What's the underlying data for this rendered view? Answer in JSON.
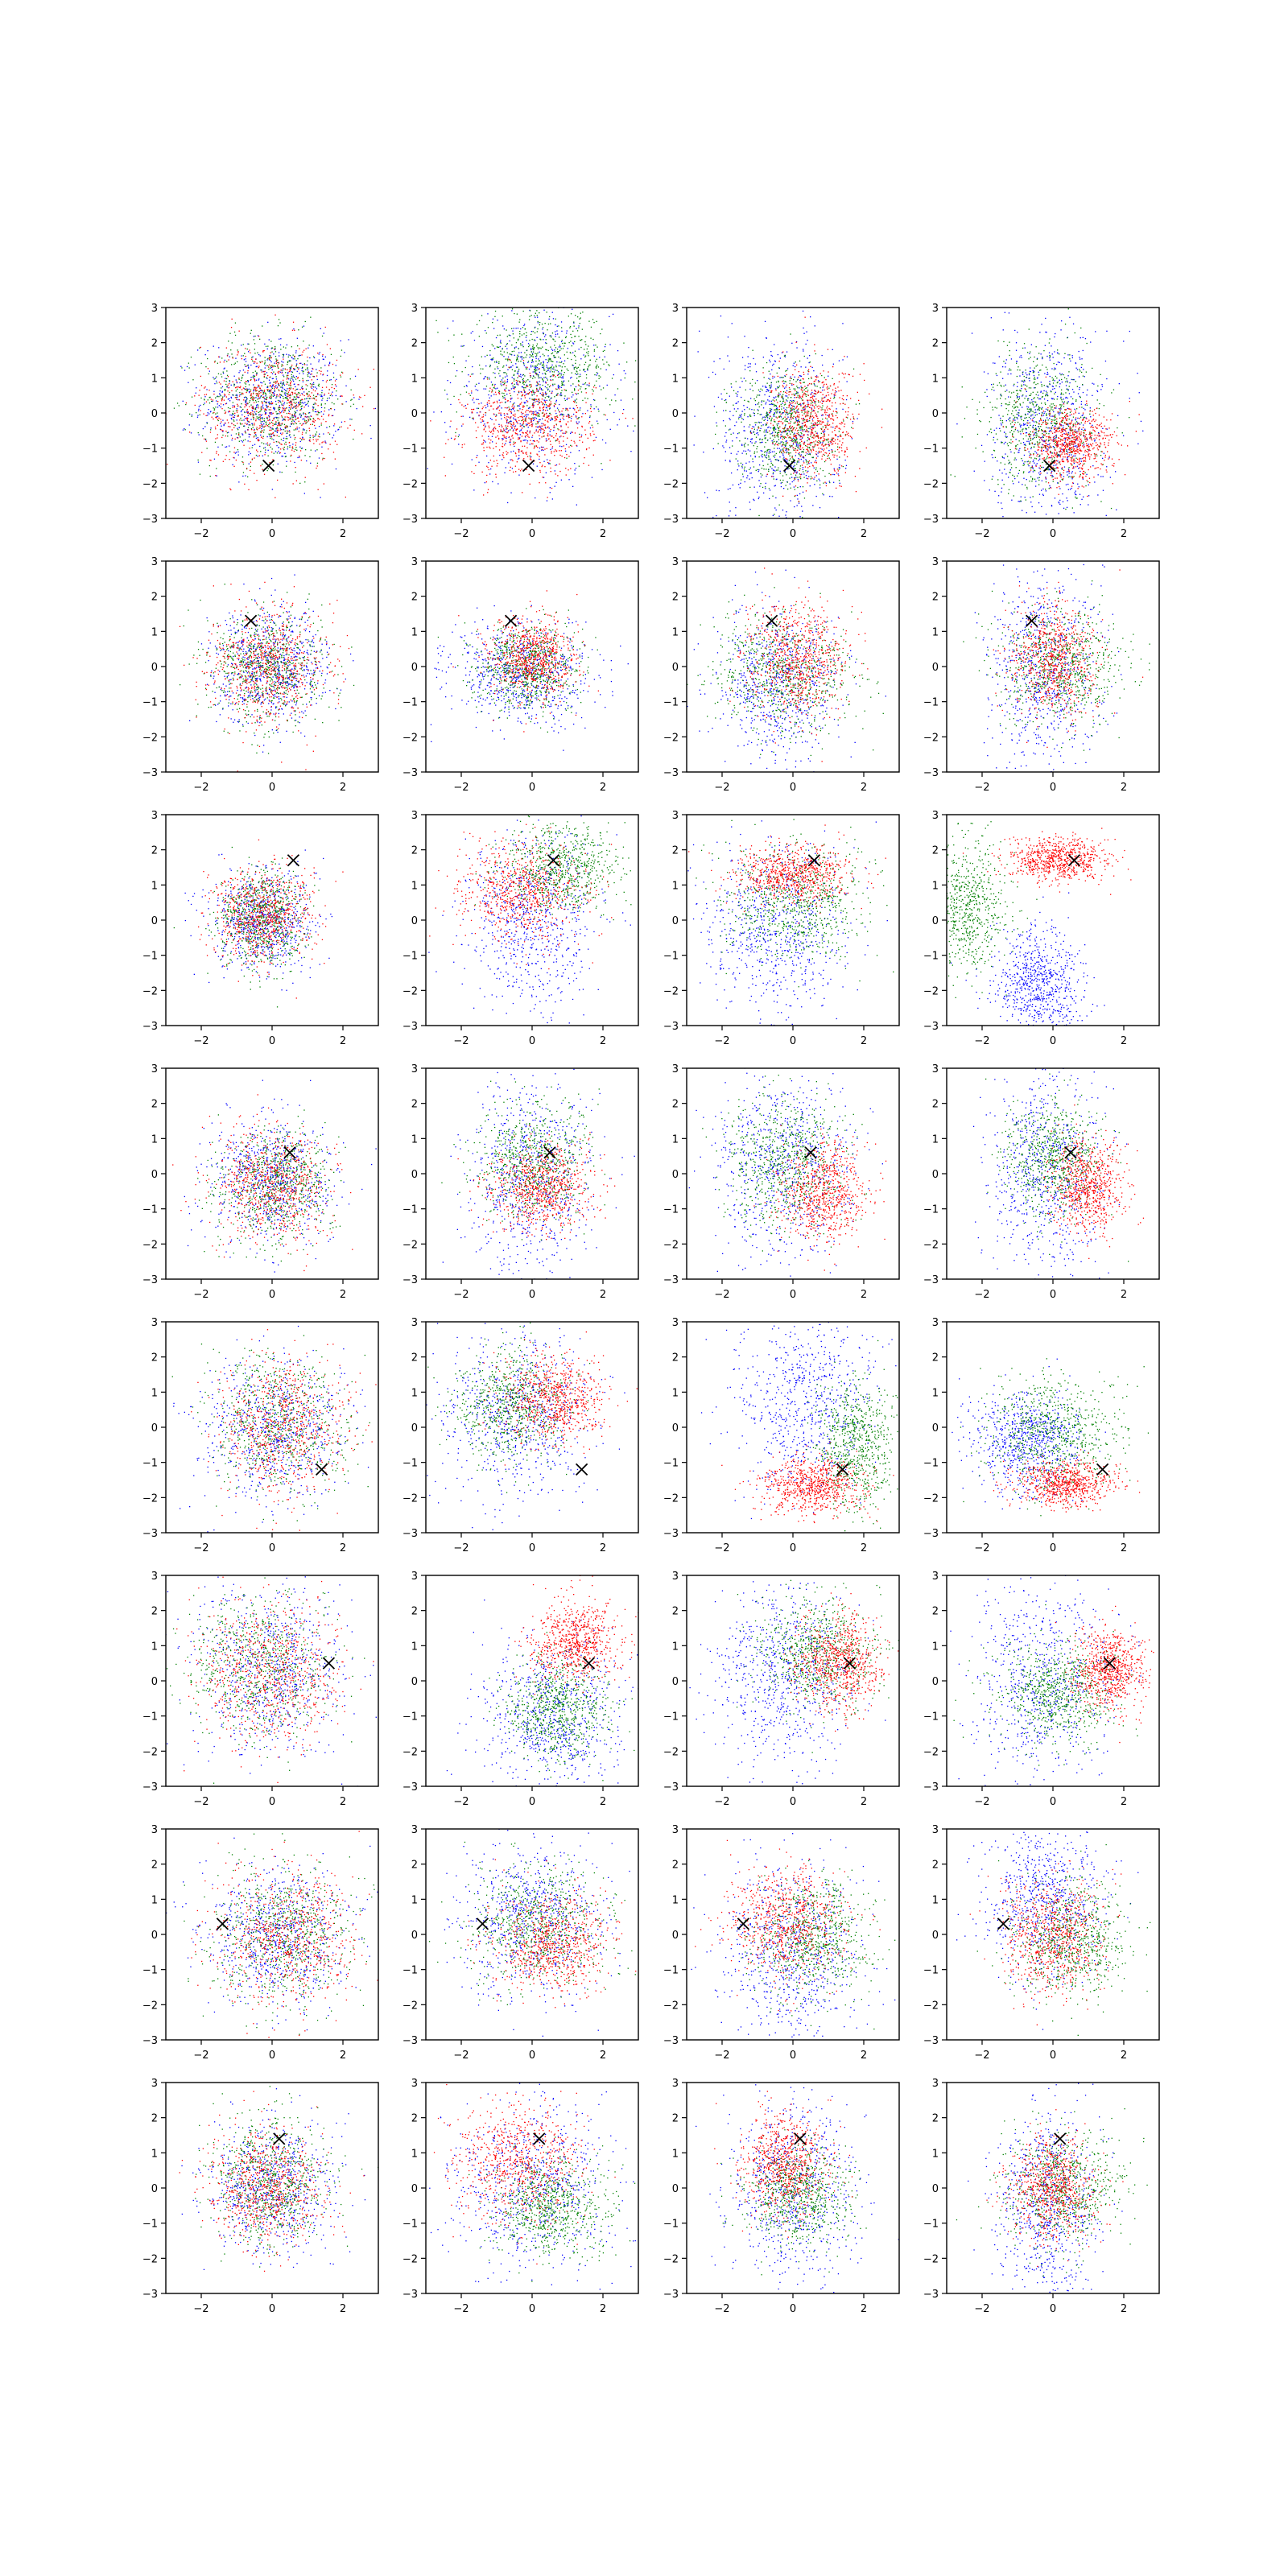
{
  "chart_data": {
    "type": "scatter",
    "layout": {
      "rows": 8,
      "cols": 4
    },
    "xlim": [
      -3,
      3
    ],
    "ylim": [
      -3,
      3
    ],
    "x_ticks": [
      -2,
      0,
      2
    ],
    "y_ticks": [
      -3,
      -2,
      -1,
      0,
      1,
      2,
      3
    ],
    "x_tick_labels": [
      "−2",
      "0",
      "2"
    ],
    "y_tick_labels": [
      "−3",
      "−2",
      "−1",
      "0",
      "1",
      "2",
      "3"
    ],
    "grid": false,
    "legend": "none",
    "series_colors": [
      "#0000ff",
      "#008000",
      "#ff0000"
    ],
    "marker_color": "#000000",
    "rows": [
      {
        "marker": [
          -0.1,
          -1.5
        ],
        "panels": [
          [
            {
              "cx": 0.0,
              "cy": 0.3,
              "sx": 1.0,
              "sy": 0.9
            },
            {
              "cx": 0.0,
              "cy": 0.4,
              "sx": 1.0,
              "sy": 0.9
            },
            {
              "cx": 0.0,
              "cy": 0.2,
              "sx": 1.0,
              "sy": 0.9
            }
          ],
          [
            {
              "cx": 0.0,
              "cy": 0.5,
              "sx": 1.1,
              "sy": 1.2
            },
            {
              "cx": 0.3,
              "cy": 1.3,
              "sx": 1.0,
              "sy": 0.8
            },
            {
              "cx": -0.1,
              "cy": -0.4,
              "sx": 0.9,
              "sy": 0.7
            }
          ],
          [
            {
              "cx": -0.4,
              "cy": -0.5,
              "sx": 0.9,
              "sy": 1.4
            },
            {
              "cx": -0.2,
              "cy": -0.4,
              "sx": 0.7,
              "sy": 0.9
            },
            {
              "cx": 0.6,
              "cy": -0.3,
              "sx": 0.6,
              "sy": 0.8
            }
          ],
          [
            {
              "cx": -0.1,
              "cy": -0.4,
              "sx": 0.8,
              "sy": 1.4
            },
            {
              "cx": -0.3,
              "cy": -0.2,
              "sx": 0.8,
              "sy": 1.0
            },
            {
              "cx": 0.5,
              "cy": -0.9,
              "sx": 0.6,
              "sy": 0.5
            }
          ]
        ]
      },
      {
        "marker": [
          -0.6,
          1.3
        ],
        "panels": [
          [
            {
              "cx": 0.0,
              "cy": 0.0,
              "sx": 0.8,
              "sy": 0.8
            },
            {
              "cx": -0.1,
              "cy": 0.0,
              "sx": 0.8,
              "sy": 0.8
            },
            {
              "cx": -0.1,
              "cy": 0.0,
              "sx": 0.8,
              "sy": 0.8
            }
          ],
          [
            {
              "cx": -0.3,
              "cy": -0.2,
              "sx": 1.0,
              "sy": 0.7
            },
            {
              "cx": -0.1,
              "cy": 0.0,
              "sx": 0.7,
              "sy": 0.6
            },
            {
              "cx": 0.0,
              "cy": 0.2,
              "sx": 0.6,
              "sy": 0.6
            }
          ],
          [
            {
              "cx": -0.4,
              "cy": -0.5,
              "sx": 0.9,
              "sy": 1.1
            },
            {
              "cx": -0.2,
              "cy": -0.2,
              "sx": 1.0,
              "sy": 0.8
            },
            {
              "cx": 0.1,
              "cy": 0.2,
              "sx": 0.7,
              "sy": 0.8
            }
          ],
          [
            {
              "cx": -0.2,
              "cy": 0.0,
              "sx": 0.8,
              "sy": 1.4
            },
            {
              "cx": 0.2,
              "cy": 0.0,
              "sx": 0.9,
              "sy": 0.8
            },
            {
              "cx": 0.0,
              "cy": 0.2,
              "sx": 0.6,
              "sy": 0.8
            }
          ]
        ]
      },
      {
        "marker": [
          0.6,
          1.7
        ],
        "panels": [
          [
            {
              "cx": -0.3,
              "cy": 0.0,
              "sx": 0.7,
              "sy": 0.7
            },
            {
              "cx": -0.3,
              "cy": 0.0,
              "sx": 0.6,
              "sy": 0.7
            },
            {
              "cx": -0.3,
              "cy": 0.1,
              "sx": 0.7,
              "sy": 0.7
            }
          ],
          [
            {
              "cx": 0.0,
              "cy": 0.0,
              "sx": 0.9,
              "sy": 1.3
            },
            {
              "cx": 0.8,
              "cy": 1.5,
              "sx": 0.8,
              "sy": 0.6
            },
            {
              "cx": -0.3,
              "cy": 0.8,
              "sx": 0.9,
              "sy": 0.7
            }
          ],
          [
            {
              "cx": -0.5,
              "cy": -0.2,
              "sx": 1.0,
              "sy": 1.2
            },
            {
              "cx": 0.1,
              "cy": 0.5,
              "sx": 1.0,
              "sy": 0.8
            },
            {
              "cx": 0.0,
              "cy": 1.3,
              "sx": 0.8,
              "sy": 0.4
            }
          ],
          [
            {
              "cx": -0.4,
              "cy": -1.8,
              "sx": 0.6,
              "sy": 0.8
            },
            {
              "cx": -2.5,
              "cy": 0.3,
              "sx": 0.6,
              "sy": 0.9
            },
            {
              "cx": 0.2,
              "cy": 1.7,
              "sx": 0.7,
              "sy": 0.3
            }
          ]
        ]
      },
      {
        "marker": [
          0.5,
          0.6
        ],
        "panels": [
          [
            {
              "cx": 0.0,
              "cy": -0.2,
              "sx": 0.9,
              "sy": 0.9
            },
            {
              "cx": 0.1,
              "cy": -0.3,
              "sx": 0.8,
              "sy": 0.8
            },
            {
              "cx": 0.0,
              "cy": -0.3,
              "sx": 0.8,
              "sy": 0.8
            }
          ],
          [
            {
              "cx": 0.0,
              "cy": 0.0,
              "sx": 0.9,
              "sy": 1.4
            },
            {
              "cx": 0.0,
              "cy": 0.3,
              "sx": 0.8,
              "sy": 0.8
            },
            {
              "cx": 0.3,
              "cy": -0.4,
              "sx": 0.7,
              "sy": 0.6
            }
          ],
          [
            {
              "cx": -0.3,
              "cy": 0.3,
              "sx": 1.0,
              "sy": 1.3
            },
            {
              "cx": -0.2,
              "cy": 0.4,
              "sx": 0.8,
              "sy": 0.9
            },
            {
              "cx": 0.9,
              "cy": -0.5,
              "sx": 0.6,
              "sy": 0.7
            }
          ],
          [
            {
              "cx": -0.2,
              "cy": 0.0,
              "sx": 0.8,
              "sy": 1.4
            },
            {
              "cx": 0.0,
              "cy": 0.4,
              "sx": 0.7,
              "sy": 0.8
            },
            {
              "cx": 1.0,
              "cy": -0.4,
              "sx": 0.5,
              "sy": 0.6
            }
          ]
        ]
      },
      {
        "marker": [
          1.4,
          -1.2
        ],
        "panels": [
          [
            {
              "cx": 0.0,
              "cy": -0.1,
              "sx": 1.0,
              "sy": 1.0
            },
            {
              "cx": 0.2,
              "cy": 0.1,
              "sx": 1.0,
              "sy": 1.0
            },
            {
              "cx": 0.3,
              "cy": 0.0,
              "sx": 0.9,
              "sy": 1.0
            }
          ],
          [
            {
              "cx": -0.4,
              "cy": 0.3,
              "sx": 1.1,
              "sy": 1.2
            },
            {
              "cx": -0.6,
              "cy": 0.6,
              "sx": 0.8,
              "sy": 0.8
            },
            {
              "cx": 0.6,
              "cy": 0.8,
              "sx": 0.7,
              "sy": 0.6
            }
          ],
          [
            {
              "cx": 0.3,
              "cy": 0.7,
              "sx": 1.0,
              "sy": 1.4
            },
            {
              "cx": 1.8,
              "cy": -0.5,
              "sx": 0.5,
              "sy": 0.9
            },
            {
              "cx": 0.6,
              "cy": -1.7,
              "sx": 0.7,
              "sy": 0.4
            }
          ],
          [
            {
              "cx": -0.8,
              "cy": -0.4,
              "sx": 0.8,
              "sy": 0.7
            },
            {
              "cx": 0.0,
              "cy": -0.2,
              "sx": 0.9,
              "sy": 0.8
            },
            {
              "cx": 0.4,
              "cy": -1.6,
              "sx": 0.7,
              "sy": 0.3
            }
          ]
        ]
      },
      {
        "marker": [
          1.6,
          0.5
        ],
        "panels": [
          [
            {
              "cx": -0.1,
              "cy": 0.3,
              "sx": 1.1,
              "sy": 1.2
            },
            {
              "cx": -0.4,
              "cy": 0.4,
              "sx": 1.0,
              "sy": 1.0
            },
            {
              "cx": -0.1,
              "cy": 0.2,
              "sx": 1.0,
              "sy": 1.0
            }
          ],
          [
            {
              "cx": 0.6,
              "cy": -1.0,
              "sx": 1.0,
              "sy": 1.0
            },
            {
              "cx": 0.7,
              "cy": -0.8,
              "sx": 0.7,
              "sy": 0.7
            },
            {
              "cx": 1.2,
              "cy": 1.1,
              "sx": 0.6,
              "sy": 0.6
            }
          ],
          [
            {
              "cx": -0.3,
              "cy": 0.2,
              "sx": 1.0,
              "sy": 1.3
            },
            {
              "cx": 0.7,
              "cy": 0.8,
              "sx": 0.8,
              "sy": 0.8
            },
            {
              "cx": 1.3,
              "cy": 0.5,
              "sx": 0.6,
              "sy": 0.7
            }
          ],
          [
            {
              "cx": -0.3,
              "cy": 0.0,
              "sx": 1.0,
              "sy": 1.4
            },
            {
              "cx": 0.1,
              "cy": -0.3,
              "sx": 0.8,
              "sy": 0.7
            },
            {
              "cx": 1.6,
              "cy": 0.3,
              "sx": 0.5,
              "sy": 0.6
            }
          ]
        ]
      },
      {
        "marker": [
          -1.4,
          0.3
        ],
        "panels": [
          [
            {
              "cx": 0.1,
              "cy": 0.0,
              "sx": 1.0,
              "sy": 1.0
            },
            {
              "cx": 0.3,
              "cy": 0.0,
              "sx": 1.0,
              "sy": 1.0
            },
            {
              "cx": 0.5,
              "cy": -0.1,
              "sx": 1.0,
              "sy": 1.0
            }
          ],
          [
            {
              "cx": 0.0,
              "cy": 0.5,
              "sx": 1.0,
              "sy": 1.1
            },
            {
              "cx": 0.1,
              "cy": 0.3,
              "sx": 1.0,
              "sy": 0.9
            },
            {
              "cx": 0.6,
              "cy": -0.3,
              "sx": 0.8,
              "sy": 0.7
            }
          ],
          [
            {
              "cx": -0.1,
              "cy": -0.5,
              "sx": 1.0,
              "sy": 1.3
            },
            {
              "cx": 0.6,
              "cy": -0.1,
              "sx": 0.8,
              "sy": 0.8
            },
            {
              "cx": -0.2,
              "cy": 0.4,
              "sx": 0.8,
              "sy": 0.8
            }
          ],
          [
            {
              "cx": -0.2,
              "cy": 1.0,
              "sx": 0.8,
              "sy": 1.1
            },
            {
              "cx": 0.5,
              "cy": -0.2,
              "sx": 0.8,
              "sy": 0.8
            },
            {
              "cx": 0.0,
              "cy": -0.1,
              "sx": 0.7,
              "sy": 0.8
            }
          ]
        ]
      },
      {
        "marker": [
          0.2,
          1.4
        ],
        "panels": [
          [
            {
              "cx": 0.0,
              "cy": 0.0,
              "sx": 0.9,
              "sy": 0.9
            },
            {
              "cx": -0.1,
              "cy": 0.2,
              "sx": 0.8,
              "sy": 0.9
            },
            {
              "cx": -0.2,
              "cy": 0.0,
              "sx": 0.8,
              "sy": 0.8
            }
          ],
          [
            {
              "cx": 0.0,
              "cy": 0.0,
              "sx": 1.1,
              "sy": 1.2
            },
            {
              "cx": 0.6,
              "cy": -0.5,
              "sx": 0.8,
              "sy": 0.7
            },
            {
              "cx": -0.4,
              "cy": 0.7,
              "sx": 0.9,
              "sy": 0.8
            }
          ],
          [
            {
              "cx": 0.0,
              "cy": 0.0,
              "sx": 0.9,
              "sy": 1.3
            },
            {
              "cx": 0.1,
              "cy": -0.2,
              "sx": 0.7,
              "sy": 0.7
            },
            {
              "cx": -0.2,
              "cy": 0.7,
              "sx": 0.6,
              "sy": 0.7
            }
          ],
          [
            {
              "cx": -0.2,
              "cy": -0.5,
              "sx": 0.7,
              "sy": 1.4
            },
            {
              "cx": 0.3,
              "cy": 0.0,
              "sx": 0.8,
              "sy": 0.8
            },
            {
              "cx": 0.0,
              "cy": 0.0,
              "sx": 0.6,
              "sy": 0.7
            }
          ]
        ]
      }
    ]
  }
}
